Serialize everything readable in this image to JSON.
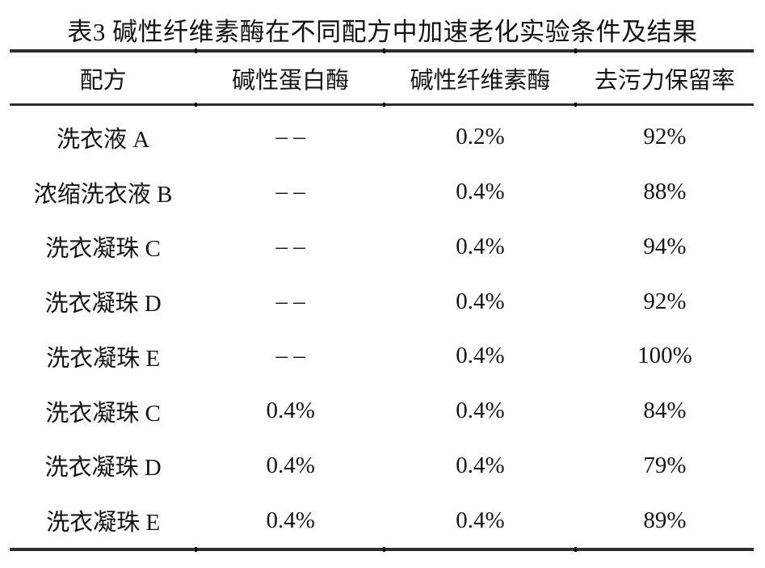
{
  "title": "表3 碱性纤维素酶在不同配方中加速老化实验条件及结果",
  "colors": {
    "background": "#ffffff",
    "text": "#151515",
    "rule": "#2d2d2d"
  },
  "chart_data": {
    "type": "table",
    "title": "表3 碱性纤维素酶在不同配方中加速老化实验条件及结果",
    "columns": [
      "配方",
      "碱性蛋白酶",
      "碱性纤维素酶",
      "去污力保留率"
    ],
    "rows": [
      [
        "洗衣液 A",
        "– –",
        "0.2%",
        "92%"
      ],
      [
        "浓缩洗衣液 B",
        "– –",
        "0.4%",
        "88%"
      ],
      [
        "洗衣凝珠 C",
        "– –",
        "0.4%",
        "94%"
      ],
      [
        "洗衣凝珠 D",
        "– –",
        "0.4%",
        "92%"
      ],
      [
        "洗衣凝珠 E",
        "– –",
        "0.4%",
        "100%"
      ],
      [
        "洗衣凝珠 C",
        "0.4%",
        "0.4%",
        "84%"
      ],
      [
        "洗衣凝珠 D",
        "0.4%",
        "0.4%",
        "79%"
      ],
      [
        "洗衣凝珠 E",
        "0.4%",
        "0.4%",
        "89%"
      ]
    ]
  }
}
